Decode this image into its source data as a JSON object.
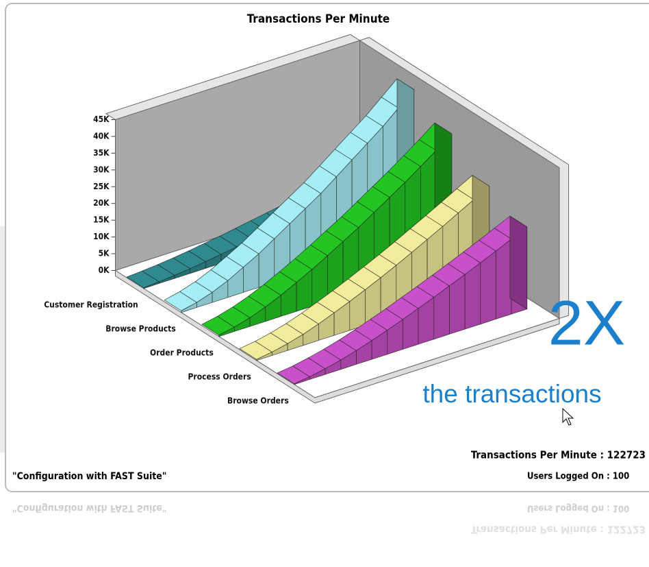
{
  "chart_data": {
    "type": "ribbon3d",
    "title": "Transactions Per Minute",
    "ylim": [
      0,
      45000
    ],
    "yticks": [
      {
        "value": 0,
        "label": "0K"
      },
      {
        "value": 5000,
        "label": "5K"
      },
      {
        "value": 10000,
        "label": "10K"
      },
      {
        "value": 15000,
        "label": "15K"
      },
      {
        "value": 20000,
        "label": "20K"
      },
      {
        "value": 25000,
        "label": "25K"
      },
      {
        "value": 30000,
        "label": "30K"
      },
      {
        "value": 35000,
        "label": "35K"
      },
      {
        "value": 40000,
        "label": "40K"
      },
      {
        "value": 45000,
        "label": "45K"
      }
    ],
    "series": [
      {
        "name": "Customer Registration",
        "color": "#2e8a8e",
        "values": [
          200,
          500,
          900,
          1400,
          2000,
          2700,
          3400,
          4200,
          5000,
          5800,
          6600,
          7400,
          8200,
          9000,
          9700,
          10400
        ]
      },
      {
        "name": "Browse Products",
        "color": "#a6eef6",
        "values": [
          500,
          1500,
          3000,
          5000,
          7500,
          10000,
          13000,
          16000,
          19000,
          22000,
          25500,
          29000,
          32500,
          36000,
          40000,
          44000
        ]
      },
      {
        "name": "Order Products",
        "color": "#22c522",
        "values": [
          400,
          1300,
          2600,
          4300,
          6300,
          8600,
          11000,
          13600,
          16300,
          19000,
          22000,
          25000,
          28000,
          31200,
          34500,
          38000
        ]
      },
      {
        "name": "Process Orders",
        "color": "#f2ec9c",
        "values": [
          300,
          1000,
          2000,
          3300,
          4900,
          6700,
          8600,
          10600,
          12700,
          14900,
          17200,
          19600,
          22000,
          24500,
          27000,
          29500
        ]
      },
      {
        "name": "Browse Orders",
        "color": "#c850c8",
        "values": [
          200,
          800,
          1700,
          2800,
          4100,
          5600,
          7200,
          8900,
          10700,
          12500,
          14400,
          16300,
          18300,
          20300,
          22400,
          24500
        ]
      }
    ]
  },
  "overlay": {
    "headline": "2X",
    "subheadline": "the transactions"
  },
  "status": {
    "transactions": "Transactions Per Minute : 122723",
    "users": "Users Logged On : 100",
    "configuration": "\"Configuration with FAST Suite\""
  }
}
